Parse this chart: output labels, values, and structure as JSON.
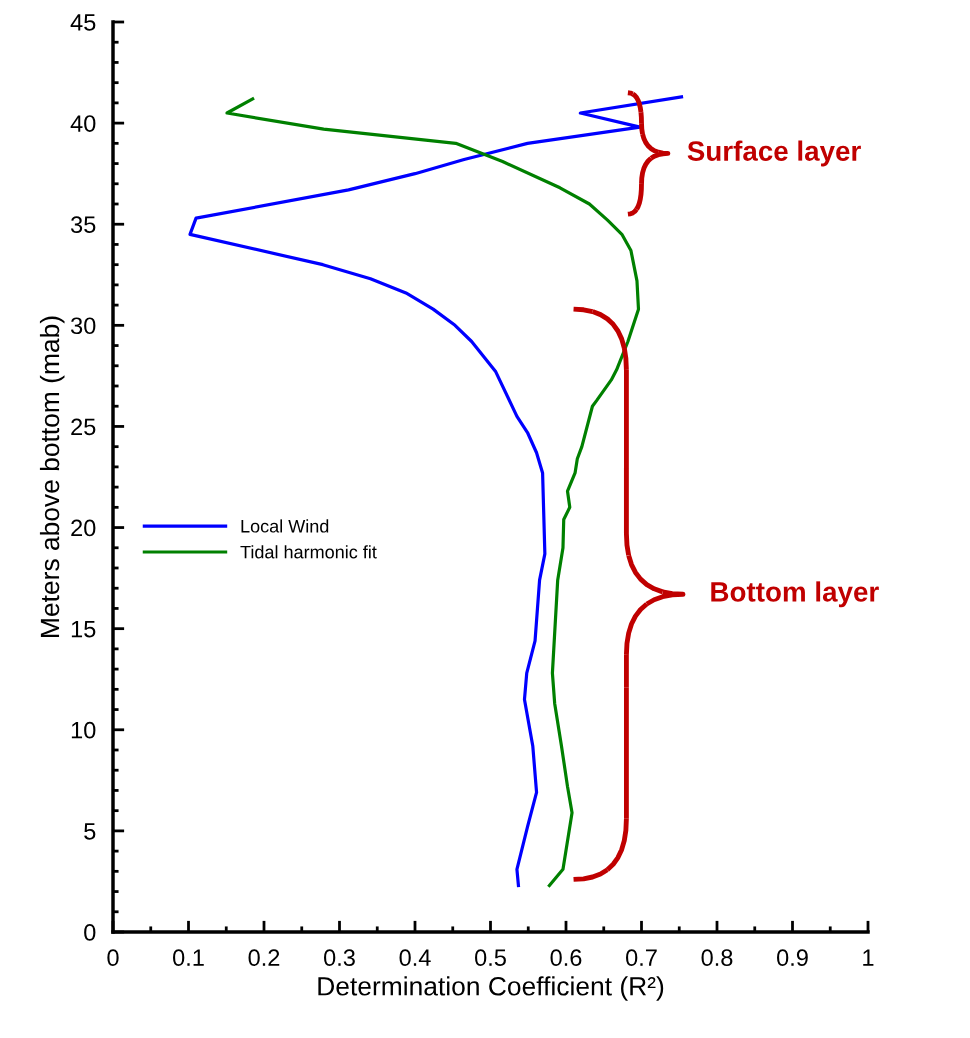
{
  "chart_data": {
    "type": "line",
    "xlabel": "Determination Coefficient (R²)",
    "ylabel": "Meters above bottom (mab)",
    "xlim": [
      0,
      1
    ],
    "xticks": [
      0,
      0.1,
      0.2,
      0.3,
      0.4,
      0.5,
      0.6,
      0.7,
      0.8,
      0.9,
      1
    ],
    "ylim": [
      0,
      45
    ],
    "yticks": [
      0,
      5,
      10,
      15,
      20,
      25,
      30,
      35,
      40,
      45
    ],
    "grid": false,
    "legend": "left",
    "line_style": "solid",
    "marker": "none",
    "series": [
      {
        "name": "Local Wind",
        "color": "#0000ff",
        "x": [
          0.537,
          0.535,
          0.549,
          0.561,
          0.556,
          0.545,
          0.548,
          0.559,
          0.565,
          0.572,
          0.569,
          0.561,
          0.549,
          0.535,
          0.507,
          0.475,
          0.453,
          0.424,
          0.388,
          0.341,
          0.278,
          0.102,
          0.11,
          0.312,
          0.4,
          0.465,
          0.549,
          0.698,
          0.619,
          0.753
        ],
        "values": [
          2.3,
          3.1,
          5.2,
          6.9,
          9.2,
          11.5,
          12.8,
          14.4,
          17.4,
          18.7,
          22.7,
          23.7,
          24.7,
          25.5,
          27.7,
          29.2,
          30.0,
          30.8,
          31.6,
          32.3,
          33.0,
          34.5,
          35.3,
          36.7,
          37.5,
          38.2,
          39.0,
          39.8,
          40.5,
          41.3
        ]
      },
      {
        "name": "Tidal harmonic fit",
        "color": "#008000",
        "x": [
          0.578,
          0.596,
          0.608,
          0.602,
          0.594,
          0.585,
          0.582,
          0.589,
          0.596,
          0.597,
          0.605,
          0.602,
          0.612,
          0.615,
          0.621,
          0.635,
          0.641,
          0.66,
          0.667,
          0.682,
          0.696,
          0.694,
          0.686,
          0.674,
          0.655,
          0.631,
          0.592,
          0.516,
          0.454,
          0.279,
          0.151,
          0.185
        ],
        "values": [
          2.3,
          3.1,
          5.9,
          7.2,
          9.2,
          11.3,
          12.8,
          17.4,
          19.0,
          20.4,
          21.0,
          21.8,
          22.7,
          23.4,
          24.0,
          26.0,
          26.3,
          27.3,
          27.8,
          29.2,
          30.8,
          32.2,
          33.7,
          34.5,
          35.2,
          36.0,
          36.8,
          38.1,
          39.0,
          39.7,
          40.5,
          41.2
        ]
      }
    ],
    "annotations": [
      "Surface layer",
      "Bottom layer"
    ]
  }
}
